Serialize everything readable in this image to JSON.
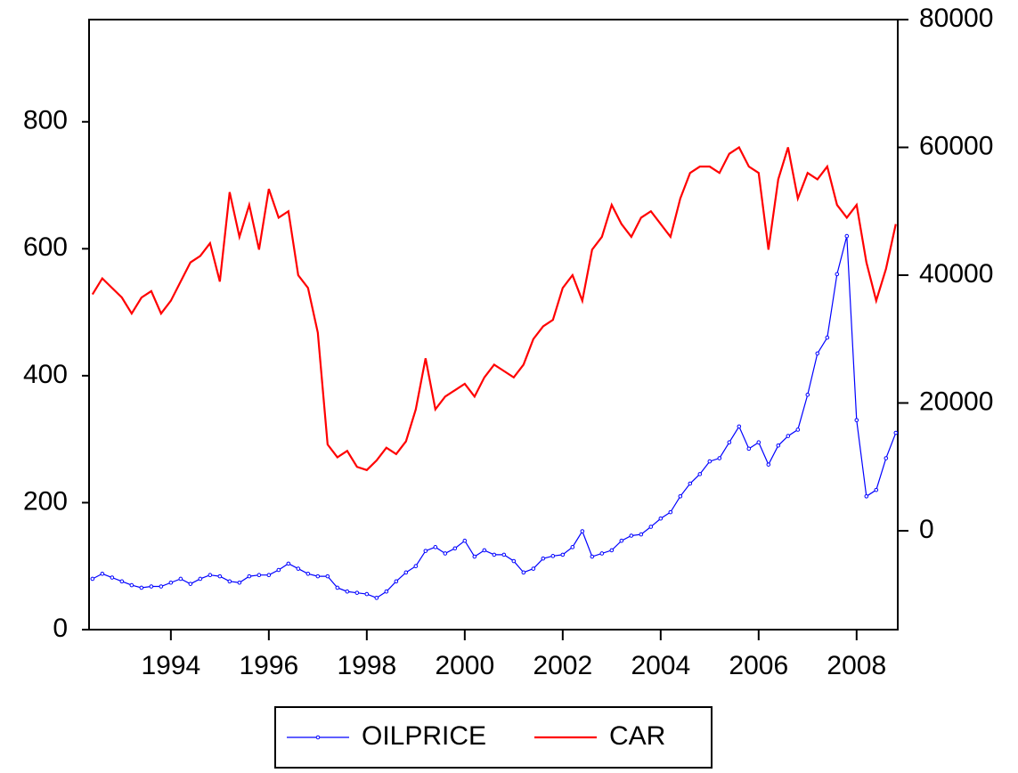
{
  "chart_data": {
    "type": "line",
    "x": [
      1992.4,
      1992.6,
      1992.8,
      1993.0,
      1993.2,
      1993.4,
      1993.6,
      1993.8,
      1994.0,
      1994.2,
      1994.4,
      1994.6,
      1994.8,
      1995.0,
      1995.2,
      1995.4,
      1995.6,
      1995.8,
      1996.0,
      1996.2,
      1996.4,
      1996.6,
      1996.8,
      1997.0,
      1997.2,
      1997.4,
      1997.6,
      1997.8,
      1998.0,
      1998.2,
      1998.4,
      1998.6,
      1998.8,
      1999.0,
      1999.2,
      1999.4,
      1999.6,
      1999.8,
      2000.0,
      2000.2,
      2000.4,
      2000.6,
      2000.8,
      2001.0,
      2001.2,
      2001.4,
      2001.6,
      2001.8,
      2002.0,
      2002.2,
      2002.4,
      2002.6,
      2002.8,
      2003.0,
      2003.2,
      2003.4,
      2003.6,
      2003.8,
      2004.0,
      2004.2,
      2004.4,
      2004.6,
      2004.8,
      2005.0,
      2005.2,
      2005.4,
      2005.6,
      2005.8,
      2006.0,
      2006.2,
      2006.4,
      2006.6,
      2006.8,
      2007.0,
      2007.2,
      2007.4,
      2007.6,
      2007.8,
      2008.0,
      2008.2,
      2008.4,
      2008.6,
      2008.8
    ],
    "series": [
      {
        "name": "OILPRICE",
        "color": "#0000ff",
        "marker": true,
        "values": [
          80,
          88,
          82,
          76,
          70,
          66,
          68,
          68,
          74,
          80,
          72,
          80,
          86,
          84,
          76,
          74,
          84,
          86,
          86,
          94,
          104,
          96,
          88,
          84,
          84,
          66,
          60,
          58,
          56,
          50,
          60,
          76,
          90,
          100,
          124,
          130,
          120,
          128,
          140,
          115,
          125,
          118,
          118,
          108,
          90,
          96,
          112,
          116,
          118,
          130,
          155,
          115,
          120,
          125,
          140,
          148,
          150,
          162,
          175,
          185,
          210,
          230,
          245,
          265,
          270,
          295,
          320,
          285,
          295,
          260,
          290,
          305,
          315,
          370,
          435,
          460,
          560,
          620,
          330,
          210,
          220,
          270,
          310
        ]
      },
      {
        "name": "CAR",
        "color": "#ff0000",
        "marker": false,
        "axis": "y2",
        "values": [
          37000,
          39500,
          38000,
          36500,
          34000,
          36500,
          37500,
          34000,
          36000,
          39000,
          42000,
          43000,
          45000,
          39000,
          53000,
          46000,
          51000,
          44000,
          53500,
          49000,
          50000,
          40000,
          38000,
          31000,
          13500,
          11500,
          12500,
          10000,
          9500,
          11000,
          13000,
          12000,
          14000,
          19000,
          27000,
          19000,
          21000,
          22000,
          23000,
          21000,
          24000,
          26000,
          25000,
          24000,
          26000,
          30000,
          32000,
          33000,
          38000,
          40000,
          36000,
          44000,
          46000,
          51000,
          48000,
          46000,
          49000,
          50000,
          48000,
          46000,
          52000,
          56000,
          57000,
          57000,
          56000,
          59000,
          60000,
          57000,
          56000,
          44000,
          55000,
          60000,
          52000,
          56000,
          55000,
          57000,
          51000,
          49000,
          51000,
          42000,
          36000,
          41000,
          48000
        ]
      }
    ],
    "xlim": [
      1992.33,
      2008.84
    ],
    "xticks": [
      1994,
      1996,
      1998,
      2000,
      2002,
      2004,
      2006,
      2008
    ],
    "ylim": [
      0,
      961
    ],
    "yticks": [
      0,
      200,
      400,
      600,
      800
    ],
    "y2lim": [
      -15470,
      80000
    ],
    "y2ticks": [
      0,
      20000,
      40000,
      60000,
      80000
    ],
    "grid": false,
    "legend": "bottom"
  }
}
